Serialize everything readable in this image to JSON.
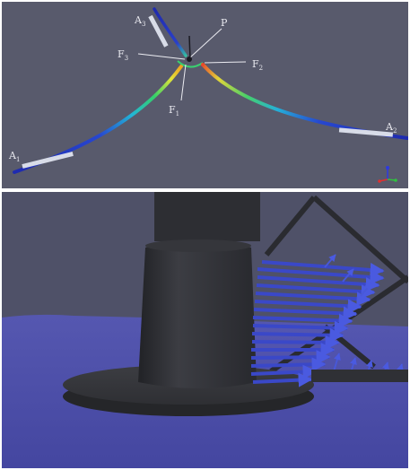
{
  "top_view": {
    "labels": {
      "a1": {
        "main": "A",
        "sub": "1"
      },
      "a2": {
        "main": "A",
        "sub": "2"
      },
      "a3": {
        "main": "A",
        "sub": "3"
      },
      "f1": {
        "main": "F",
        "sub": "1"
      },
      "f2": {
        "main": "F",
        "sub": "2"
      },
      "f3": {
        "main": "F",
        "sub": "3"
      },
      "p": {
        "main": "P",
        "sub": ""
      }
    },
    "colors": {
      "background": "#585a6c",
      "cable_low": "#1f2bb0",
      "cable_high": "#d9e22c",
      "anchor": "#d8dce8",
      "label": "#e8e8ee"
    },
    "axis_triad_icon": "xyz-axes-icon"
  },
  "bottom_view": {
    "colors": {
      "sky": "#4f5168",
      "floor": "#4c4fa6",
      "post": "#2f3035",
      "arrows": "#3a48c8"
    },
    "arrow_field_icon": "force-vector-arrows-icon"
  }
}
